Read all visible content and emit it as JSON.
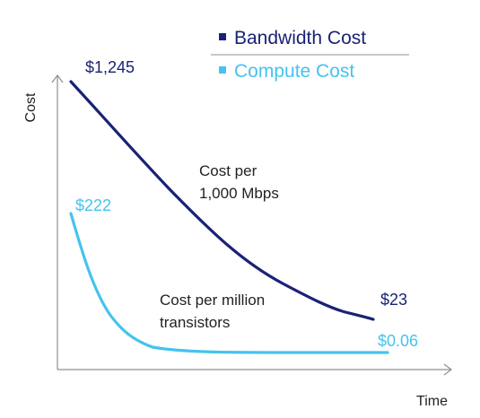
{
  "chart_data": {
    "type": "line",
    "title": "",
    "xlabel": "Time",
    "ylabel": "Cost",
    "x_ticks": [],
    "y_ticks": [],
    "grid": false,
    "legend_position": "top-right",
    "legend": [
      {
        "name": "Bandwidth Cost",
        "color": "#1a2275"
      },
      {
        "name": "Compute Cost",
        "color": "#45c3ee"
      }
    ],
    "series": [
      {
        "name": "Bandwidth Cost",
        "color": "#1a2275",
        "annotation": "Cost per\n1,000 Mbps",
        "start_label": "$1,245",
        "end_label": "$23",
        "start_value": 1245,
        "end_value": 23
      },
      {
        "name": "Compute Cost",
        "color": "#45c3ee",
        "annotation": "Cost per million\ntransistors",
        "start_label": "$222",
        "end_label": "$0.06",
        "start_value": 222,
        "end_value": 0.06
      }
    ]
  }
}
